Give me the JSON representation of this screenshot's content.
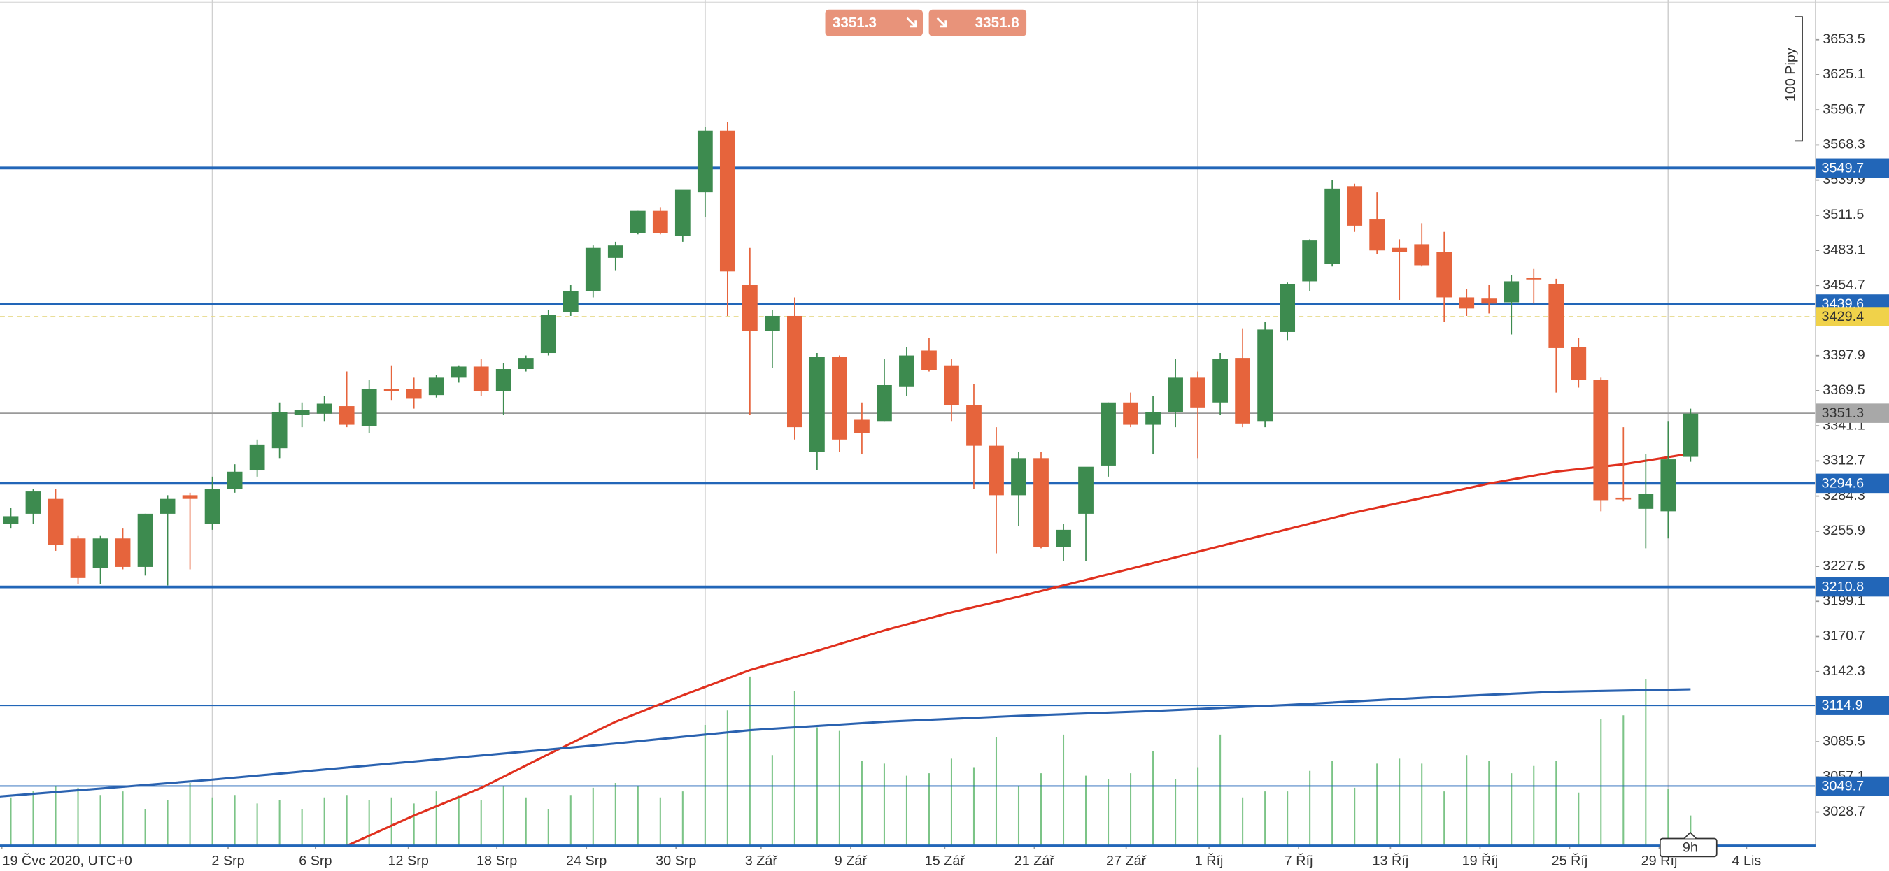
{
  "chart_data": {
    "type": "candlestick",
    "bid": 3351.3,
    "ask": 3351.8,
    "pips_label": "100 Pipy",
    "countdown": "9h",
    "up_color": "#3d8b4f",
    "down_color": "#e6643c",
    "candles": {
      "open": [
        3262,
        3270,
        3282,
        3250,
        3226,
        3250,
        3227,
        3270,
        3285,
        3262,
        3290,
        3305,
        3323,
        3350,
        3351,
        3357,
        3341,
        3371,
        3371,
        3366,
        3380,
        3389,
        3369,
        3387,
        3400,
        3433,
        3450,
        3477,
        3497,
        3515,
        3495,
        3530,
        3580,
        3455,
        3418,
        3430,
        3320,
        3397,
        3346,
        3345,
        3373,
        3402,
        3390,
        3358,
        3325,
        3285,
        3315,
        3243,
        3270,
        3309,
        3360,
        3342,
        3352,
        3380,
        3360,
        3396,
        3345,
        3417,
        3458,
        3472,
        3535,
        3508,
        3485,
        3488,
        3482,
        3445,
        3444,
        3441,
        3461,
        3456,
        3405,
        3378,
        3283,
        3274,
        3272,
        3316
      ],
      "high": [
        3275,
        3290,
        3290,
        3252,
        3252,
        3258,
        3270,
        3285,
        3287,
        3300,
        3310,
        3330,
        3360,
        3360,
        3365,
        3385,
        3378,
        3390,
        3380,
        3382,
        3390,
        3395,
        3392,
        3398,
        3435,
        3455,
        3487,
        3490,
        3515,
        3518,
        3530,
        3583,
        3587,
        3485,
        3435,
        3445,
        3400,
        3398,
        3360,
        3395,
        3405,
        3412,
        3395,
        3375,
        3340,
        3320,
        3320,
        3262,
        3300,
        3360,
        3368,
        3365,
        3395,
        3385,
        3400,
        3420,
        3425,
        3457,
        3492,
        3540,
        3537,
        3530,
        3492,
        3505,
        3498,
        3452,
        3455,
        3463,
        3468,
        3460,
        3412,
        3380,
        3340,
        3318,
        3345,
        3355
      ],
      "low": [
        3258,
        3262,
        3240,
        3213,
        3213,
        3225,
        3220,
        3212,
        3225,
        3257,
        3287,
        3300,
        3315,
        3340,
        3345,
        3340,
        3335,
        3362,
        3355,
        3364,
        3376,
        3365,
        3350,
        3385,
        3398,
        3430,
        3445,
        3467,
        3496,
        3496,
        3490,
        3510,
        3430,
        3350,
        3388,
        3330,
        3305,
        3320,
        3318,
        3345,
        3365,
        3385,
        3345,
        3290,
        3238,
        3260,
        3242,
        3232,
        3232,
        3300,
        3340,
        3318,
        3340,
        3315,
        3350,
        3340,
        3340,
        3410,
        3450,
        3470,
        3498,
        3480,
        3443,
        3470,
        3425,
        3430,
        3432,
        3415,
        3440,
        3368,
        3372,
        3272,
        3280,
        3242,
        3250,
        3312
      ],
      "close": [
        3268,
        3288,
        3245,
        3218,
        3250,
        3227,
        3270,
        3282,
        3282,
        3290,
        3304,
        3326,
        3352,
        3354,
        3359,
        3342,
        3371,
        3369,
        3363,
        3380,
        3389,
        3369,
        3387,
        3396,
        3431,
        3450,
        3485,
        3487,
        3515,
        3497,
        3532,
        3580,
        3466,
        3418,
        3430,
        3340,
        3397,
        3330,
        3335,
        3374,
        3398,
        3386,
        3358,
        3325,
        3285,
        3315,
        3243,
        3257,
        3308,
        3360,
        3342,
        3352,
        3380,
        3356,
        3395,
        3343,
        3419,
        3456,
        3491,
        3533,
        3503,
        3483,
        3482,
        3471,
        3445,
        3436,
        3440,
        3458,
        3460,
        3404,
        3378,
        3281,
        3282,
        3286,
        3314,
        3351
      ]
    },
    "volume": {
      "color": "#7cc487",
      "lim": [
        0,
        700
      ],
      "values": [
        40,
        45,
        50,
        48,
        42,
        45,
        30,
        38,
        52,
        40,
        42,
        35,
        38,
        30,
        40,
        42,
        38,
        40,
        35,
        45,
        42,
        38,
        50,
        40,
        30,
        42,
        48,
        52,
        50,
        40,
        45,
        100,
        112,
        140,
        75,
        128,
        98,
        95,
        70,
        68,
        58,
        60,
        72,
        65,
        90,
        50,
        60,
        92,
        58,
        55,
        60,
        78,
        55,
        65,
        92,
        40,
        45,
        45,
        62,
        70,
        48,
        68,
        72,
        68,
        45,
        75,
        70,
        60,
        66,
        70,
        44,
        105,
        108,
        138,
        47,
        25
      ]
    },
    "moving_averages": [
      {
        "color": "#e0301e",
        "x": [
          15,
          18,
          21,
          24,
          27,
          30,
          33,
          36,
          39,
          42,
          45,
          48,
          51,
          54,
          57,
          60,
          63,
          66,
          69,
          72,
          75
        ],
        "values": [
          3001.4,
          3025.8,
          3048.2,
          3075.4,
          3101.7,
          3123.1,
          3143.5,
          3159.1,
          3175.6,
          3190.2,
          3202.9,
          3216.5,
          3230.1,
          3243.8,
          3257.4,
          3271.0,
          3282.7,
          3294.4,
          3304.1,
          3310.0,
          3318.7
        ]
      },
      {
        "color": "#2a62b0",
        "x": [
          -0.5,
          5,
          9,
          15,
          21,
          27,
          33,
          39,
          45,
          51,
          57,
          63,
          69,
          75
        ],
        "values": [
          3041.3,
          3049.1,
          3054.9,
          3064.7,
          3074.4,
          3084.1,
          3094.9,
          3101.7,
          3106.5,
          3110.4,
          3115.3,
          3121.1,
          3126.0,
          3128.0
        ]
      }
    ],
    "levels": [
      {
        "value": 3549.7,
        "style": "major"
      },
      {
        "value": 3439.6,
        "style": "major"
      },
      {
        "value": 3294.6,
        "style": "major"
      },
      {
        "value": 3210.8,
        "style": "major"
      },
      {
        "value": 3114.9,
        "style": "minor"
      },
      {
        "value": 3049.7,
        "style": "minor"
      }
    ],
    "level_color": "#2266b8",
    "alert_level": 3429.4,
    "current_price": 3351.3,
    "ylim": [
      3001.4,
      3685.6
    ],
    "yticks": [
      3653.5,
      3625.1,
      3596.7,
      3568.3,
      3539.9,
      3511.5,
      3483.1,
      3454.7,
      3397.9,
      3369.5,
      3341.1,
      3312.7,
      3284.3,
      3255.9,
      3227.5,
      3199.1,
      3170.7,
      3142.3,
      3085.5,
      3057.1,
      3028.7
    ],
    "xlim": [
      -0.484,
      80.58
    ],
    "xticks": [
      {
        "value": -0.4,
        "label": "19 Čvc 2020, UTC+0"
      },
      {
        "value": 9.7,
        "label": "2 Srp"
      },
      {
        "value": 13.6,
        "label": "6 Srp"
      },
      {
        "value": 17.75,
        "label": "12 Srp"
      },
      {
        "value": 21.7,
        "label": "18 Srp"
      },
      {
        "value": 25.7,
        "label": "24 Srp"
      },
      {
        "value": 29.7,
        "label": "30 Srp"
      },
      {
        "value": 33.5,
        "label": "3 Zář"
      },
      {
        "value": 37.5,
        "label": "9 Zář"
      },
      {
        "value": 41.7,
        "label": "15 Zář"
      },
      {
        "value": 45.7,
        "label": "21 Zář"
      },
      {
        "value": 49.8,
        "label": "27 Zář"
      },
      {
        "value": 53.5,
        "label": "1 Říj"
      },
      {
        "value": 57.5,
        "label": "7 Říj"
      },
      {
        "value": 61.6,
        "label": "13 Říj"
      },
      {
        "value": 65.6,
        "label": "19 Říj"
      },
      {
        "value": 69.6,
        "label": "25 Říj"
      },
      {
        "value": 73.6,
        "label": "29 Říj"
      },
      {
        "value": 77.5,
        "label": "4 Lis"
      }
    ],
    "vlines": [
      9,
      31,
      53,
      74
    ]
  }
}
